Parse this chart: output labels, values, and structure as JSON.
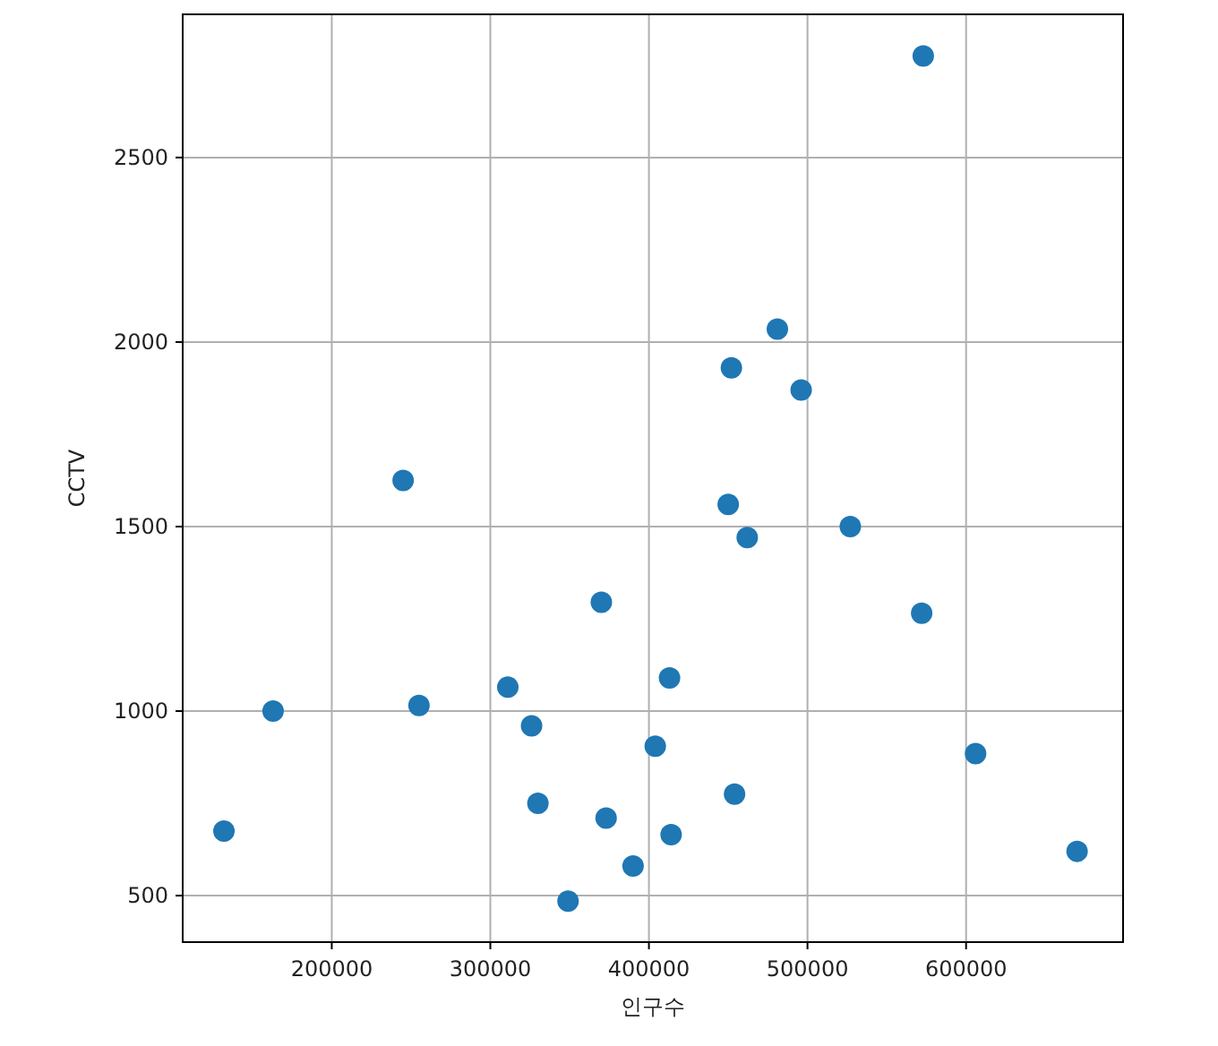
{
  "chart_data": {
    "type": "scatter",
    "xlabel": "인구수",
    "ylabel": "CCTV",
    "x": [
      132000,
      163000,
      245000,
      255000,
      311000,
      326000,
      330000,
      349000,
      370000,
      373000,
      390000,
      404000,
      413000,
      414000,
      450000,
      452000,
      454000,
      462000,
      481000,
      496000,
      527000,
      572000,
      573000,
      606000,
      670000
    ],
    "values": [
      675,
      1000,
      1625,
      1015,
      1065,
      960,
      750,
      485,
      1295,
      710,
      580,
      905,
      1090,
      665,
      1560,
      1930,
      775,
      1470,
      2035,
      1870,
      1500,
      1265,
      2775,
      885,
      620
    ],
    "color": "#1f77b4",
    "marker": "circle",
    "grid": true,
    "xlim": [
      106000,
      699000
    ],
    "ylim": [
      374,
      2888
    ],
    "xticks": [
      200000,
      300000,
      400000,
      500000,
      600000
    ],
    "yticks": [
      500,
      1000,
      1500,
      2000,
      2500
    ]
  }
}
